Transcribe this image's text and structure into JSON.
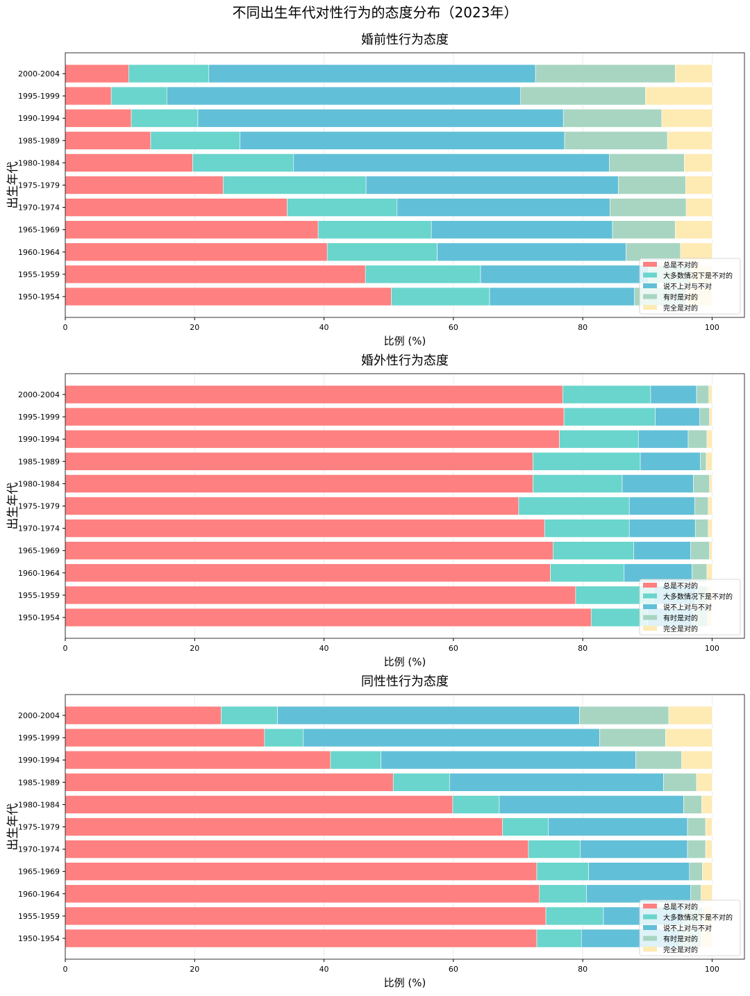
{
  "suptitle": "不同出生年代对性行为的态度分布（2023年）",
  "colors": [
    "#fe8080",
    "#69d5cc",
    "#62bfd8",
    "#a7d5c1",
    "#feeab3"
  ],
  "chart_data": [
    {
      "type": "bar",
      "orientation": "horizontal-stacked",
      "title": "婚前性行为态度",
      "xlabel": "比例 (%)",
      "ylabel": "出生年代",
      "xlim": [
        0,
        105
      ],
      "xticks": [
        0,
        20,
        40,
        60,
        80,
        100
      ],
      "legend_position": "lower-right",
      "categories": [
        "2000-2004",
        "1995-1999",
        "1990-1994",
        "1985-1989",
        "1980-1984",
        "1975-1979",
        "1970-1974",
        "1965-1969",
        "1960-1964",
        "1955-1959",
        "1950-1954"
      ],
      "series": [
        {
          "name": "总是不对的",
          "values": [
            9.8,
            7.1,
            10.2,
            13.2,
            19.7,
            24.4,
            34.3,
            39.1,
            40.5,
            46.4,
            50.4
          ]
        },
        {
          "name": "大多数情况下是不对的",
          "values": [
            12.4,
            8.6,
            10.3,
            13.8,
            15.6,
            22.1,
            17.0,
            17.5,
            17.0,
            17.8,
            15.2
          ]
        },
        {
          "name": "说不上对与不对",
          "values": [
            50.5,
            54.7,
            56.5,
            50.2,
            48.8,
            39.0,
            32.9,
            28.0,
            29.2,
            26.0,
            22.4
          ]
        },
        {
          "name": "有时是对的",
          "values": [
            21.6,
            19.3,
            15.2,
            15.9,
            11.6,
            10.4,
            11.8,
            9.7,
            8.4,
            6.5,
            8.0
          ]
        },
        {
          "name": "完全是对的",
          "values": [
            5.7,
            10.3,
            7.8,
            6.9,
            4.3,
            4.1,
            4.0,
            5.7,
            4.9,
            3.3,
            4.0
          ]
        }
      ]
    },
    {
      "type": "bar",
      "orientation": "horizontal-stacked",
      "title": "婚外性行为态度",
      "xlabel": "比例 (%)",
      "ylabel": "出生年代",
      "xlim": [
        0,
        105
      ],
      "xticks": [
        0,
        20,
        40,
        60,
        80,
        100
      ],
      "legend_position": "lower-right",
      "categories": [
        "2000-2004",
        "1995-1999",
        "1990-1994",
        "1985-1989",
        "1980-1984",
        "1975-1979",
        "1970-1974",
        "1965-1969",
        "1960-1964",
        "1955-1959",
        "1950-1954"
      ],
      "series": [
        {
          "name": "总是不对的",
          "values": [
            76.9,
            77.1,
            76.4,
            72.3,
            72.3,
            70.1,
            74.1,
            75.4,
            75.0,
            78.9,
            81.3
          ]
        },
        {
          "name": "大多数情况下是不对的",
          "values": [
            13.6,
            14.1,
            12.2,
            16.6,
            13.8,
            17.1,
            13.1,
            12.5,
            11.4,
            12.0,
            8.7
          ]
        },
        {
          "name": "说不上对与不对",
          "values": [
            7.1,
            6.9,
            7.7,
            9.3,
            11.0,
            10.1,
            10.2,
            8.8,
            10.5,
            6.5,
            7.0
          ]
        },
        {
          "name": "有时是对的",
          "values": [
            1.9,
            1.5,
            2.9,
            0.9,
            2.5,
            2.1,
            2.0,
            2.9,
            2.3,
            1.9,
            2.3
          ]
        },
        {
          "name": "完全是对的",
          "values": [
            0.5,
            0.4,
            0.8,
            0.9,
            0.4,
            0.6,
            0.6,
            0.4,
            0.8,
            0.7,
            0.7
          ]
        }
      ]
    },
    {
      "type": "bar",
      "orientation": "horizontal-stacked",
      "title": "同性性行为态度",
      "xlabel": "比例 (%)",
      "ylabel": "出生年代",
      "xlim": [
        0,
        105
      ],
      "xticks": [
        0,
        20,
        40,
        60,
        80,
        100
      ],
      "legend_position": "lower-right",
      "categories": [
        "2000-2004",
        "1995-1999",
        "1990-1994",
        "1985-1989",
        "1980-1984",
        "1975-1979",
        "1970-1974",
        "1965-1969",
        "1960-1964",
        "1955-1959",
        "1950-1954"
      ],
      "series": [
        {
          "name": "总是不对的",
          "values": [
            24.1,
            30.8,
            41.0,
            50.7,
            59.9,
            67.6,
            71.6,
            72.9,
            73.3,
            74.3,
            72.9
          ]
        },
        {
          "name": "大多数情况下是不对的",
          "values": [
            8.7,
            6.0,
            7.8,
            8.7,
            7.2,
            7.1,
            8.0,
            8.0,
            7.3,
            8.9,
            6.9
          ]
        },
        {
          "name": "说不上对与不对",
          "values": [
            46.7,
            45.8,
            39.4,
            33.1,
            28.5,
            21.5,
            16.6,
            15.6,
            16.1,
            12.3,
            15.2
          ]
        },
        {
          "name": "有时是对的",
          "values": [
            13.8,
            10.2,
            7.1,
            5.1,
            2.8,
            2.8,
            2.8,
            2.0,
            1.6,
            3.0,
            3.3
          ]
        },
        {
          "name": "完全是对的",
          "values": [
            6.7,
            7.2,
            4.7,
            2.4,
            1.6,
            1.0,
            1.0,
            1.5,
            1.7,
            1.5,
            1.7
          ]
        }
      ]
    }
  ]
}
